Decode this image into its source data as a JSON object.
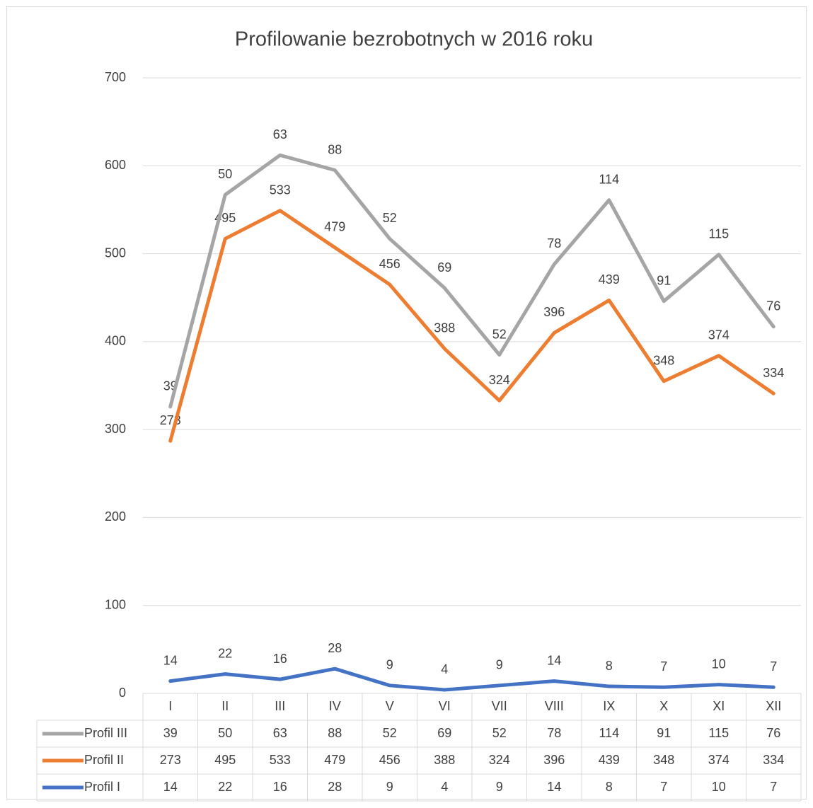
{
  "chart_data": {
    "type": "line",
    "stacked": true,
    "title": "Profilowanie bezrobotnych w 2016 roku",
    "categories": [
      "I",
      "II",
      "III",
      "IV",
      "V",
      "VI",
      "VII",
      "VIII",
      "IX",
      "X",
      "XI",
      "XII"
    ],
    "series": [
      {
        "name": "Profil I",
        "color": "#4472c4",
        "values": [
          14,
          22,
          16,
          28,
          9,
          4,
          9,
          14,
          8,
          7,
          10,
          7
        ]
      },
      {
        "name": "Profil II",
        "color": "#ed7d31",
        "values": [
          273,
          495,
          533,
          479,
          456,
          388,
          324,
          396,
          439,
          348,
          374,
          334
        ]
      },
      {
        "name": "Profil III",
        "color": "#a5a5a5",
        "values": [
          39,
          50,
          63,
          88,
          52,
          69,
          52,
          78,
          114,
          91,
          115,
          76
        ]
      }
    ],
    "ylim": [
      0,
      700
    ],
    "yticks": [
      0,
      100,
      200,
      300,
      400,
      500,
      600,
      700
    ],
    "grid": true,
    "data_table": true
  }
}
